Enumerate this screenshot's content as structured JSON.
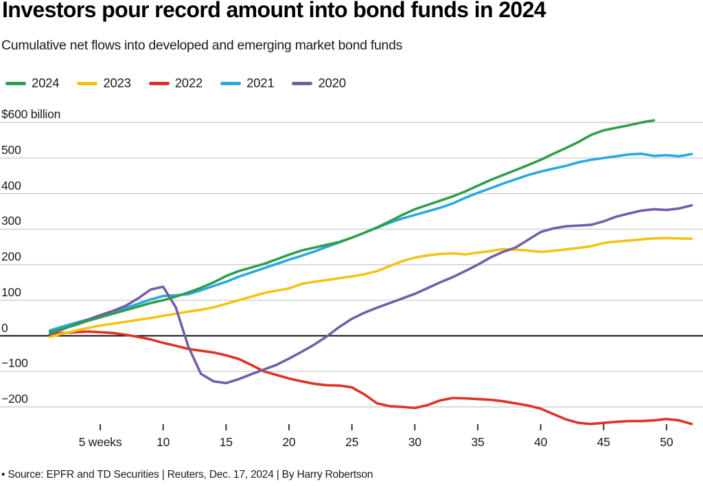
{
  "header": {
    "title": "Investors pour record amount into bond funds in 2024",
    "subtitle": "Cumulative net flows into developed and emerging market bond funds"
  },
  "footer": {
    "text": "• Source: EPFR and TD Securities | Reuters, Dec. 17, 2024 | By Harry Robertson"
  },
  "colors": {
    "grid": "#c9c9c9",
    "zero_line": "#111111",
    "tick": "#333333"
  },
  "chart_data": {
    "type": "line",
    "title": "Investors pour record amount into bond funds in 2024",
    "subtitle": "Cumulative net flows into developed and emerging market bond funds",
    "x_unit": "weeks",
    "xlim_weeks": [
      1,
      52
    ],
    "ylim": [
      -260,
      620
    ],
    "grid": true,
    "legend_position": "top-left",
    "y_ticks": [
      {
        "value": 600,
        "label": "$600 billion"
      },
      {
        "value": 500,
        "label": "500"
      },
      {
        "value": 400,
        "label": "400"
      },
      {
        "value": 300,
        "label": "300"
      },
      {
        "value": 200,
        "label": "200"
      },
      {
        "value": 100,
        "label": "100"
      },
      {
        "value": 0,
        "label": "0"
      },
      {
        "value": -100,
        "label": "−100"
      },
      {
        "value": -200,
        "label": "−200"
      }
    ],
    "x_ticks": [
      {
        "week": 5,
        "label": "5 weeks"
      },
      {
        "week": 10,
        "label": "10"
      },
      {
        "week": 15,
        "label": "15"
      },
      {
        "week": 20,
        "label": "20"
      },
      {
        "week": 25,
        "label": "25"
      },
      {
        "week": 30,
        "label": "30"
      },
      {
        "week": 35,
        "label": "35"
      },
      {
        "week": 40,
        "label": "40"
      },
      {
        "week": 45,
        "label": "45"
      },
      {
        "week": 50,
        "label": "50"
      }
    ],
    "series": [
      {
        "name": "2024",
        "color": "#2f9e4b",
        "start_week": 1,
        "values": [
          10,
          20,
          30,
          42,
          52,
          62,
          72,
          82,
          92,
          100,
          110,
          122,
          135,
          150,
          168,
          182,
          192,
          202,
          215,
          228,
          240,
          248,
          256,
          264,
          276,
          290,
          305,
          322,
          340,
          356,
          368,
          380,
          392,
          406,
          422,
          438,
          452,
          466,
          480,
          495,
          512,
          528,
          545,
          565,
          578,
          585,
          592,
          600,
          606
        ]
      },
      {
        "name": "2023",
        "color": "#f3c314",
        "start_week": 1,
        "values": [
          -3,
          6,
          14,
          22,
          29,
          34,
          39,
          45,
          50,
          56,
          62,
          68,
          73,
          80,
          90,
          100,
          110,
          120,
          127,
          133,
          146,
          152,
          157,
          162,
          167,
          173,
          182,
          196,
          210,
          220,
          226,
          230,
          232,
          229,
          234,
          238,
          244,
          242,
          240,
          236,
          239,
          243,
          247,
          252,
          261,
          265,
          268,
          271,
          274,
          275,
          274,
          273
        ]
      },
      {
        "name": "2022",
        "color": "#dd3227",
        "start_week": 1,
        "values": [
          5,
          8,
          10,
          12,
          10,
          8,
          3,
          -3,
          -10,
          -20,
          -28,
          -37,
          -42,
          -47,
          -55,
          -65,
          -82,
          -100,
          -110,
          -120,
          -128,
          -135,
          -139,
          -140,
          -145,
          -165,
          -190,
          -198,
          -200,
          -203,
          -195,
          -182,
          -175,
          -176,
          -178,
          -180,
          -184,
          -190,
          -196,
          -205,
          -220,
          -235,
          -245,
          -248,
          -245,
          -242,
          -240,
          -240,
          -238,
          -234,
          -238,
          -248
        ]
      },
      {
        "name": "2021",
        "color": "#29a8e0",
        "start_week": 1,
        "values": [
          15,
          26,
          36,
          46,
          56,
          67,
          78,
          90,
          102,
          112,
          114,
          117,
          128,
          140,
          152,
          166,
          178,
          190,
          202,
          214,
          225,
          237,
          250,
          263,
          276,
          290,
          304,
          318,
          330,
          340,
          350,
          360,
          372,
          388,
          402,
          415,
          428,
          440,
          452,
          462,
          470,
          478,
          488,
          495,
          500,
          505,
          510,
          512,
          506,
          508,
          505,
          511
        ]
      },
      {
        "name": "2020",
        "color": "#745da8",
        "start_week": 1,
        "values": [
          5,
          18,
          32,
          45,
          58,
          70,
          84,
          105,
          130,
          138,
          80,
          -30,
          -107,
          -128,
          -133,
          -122,
          -108,
          -95,
          -82,
          -64,
          -45,
          -25,
          -2,
          25,
          48,
          65,
          79,
          92,
          105,
          118,
          134,
          150,
          165,
          182,
          200,
          220,
          236,
          248,
          270,
          292,
          302,
          308,
          310,
          312,
          322,
          335,
          344,
          352,
          356,
          354,
          358,
          367
        ]
      }
    ]
  }
}
